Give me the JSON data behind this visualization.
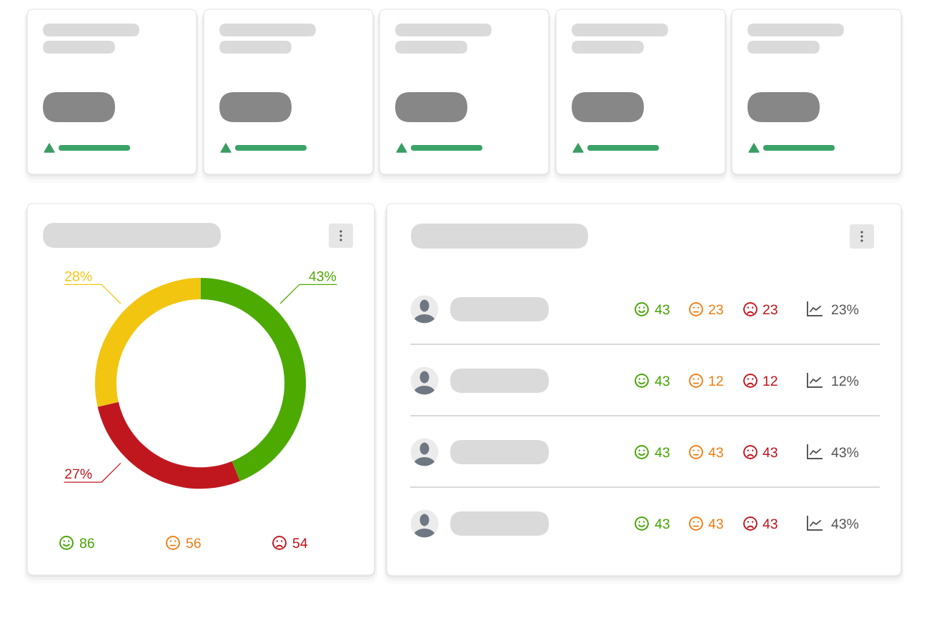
{
  "chart_data": [
    {
      "type": "donut",
      "categories": [
        null,
        null,
        null
      ],
      "values": [
        43,
        27,
        28
      ],
      "colors": [
        "#4caa00",
        "#c0171f",
        "#f2c511"
      ],
      "value_labels": [
        "43%",
        "27%",
        "28%"
      ],
      "annotations": [
        "86",
        "56",
        "54"
      ]
    },
    {
      "type": "other",
      "annotations": [
        "43",
        "23",
        "23",
        "23%",
        "43",
        "12",
        "12",
        "12%",
        "43",
        "43",
        "43",
        "43%",
        "43",
        "43",
        "43",
        "43%"
      ]
    }
  ]
}
